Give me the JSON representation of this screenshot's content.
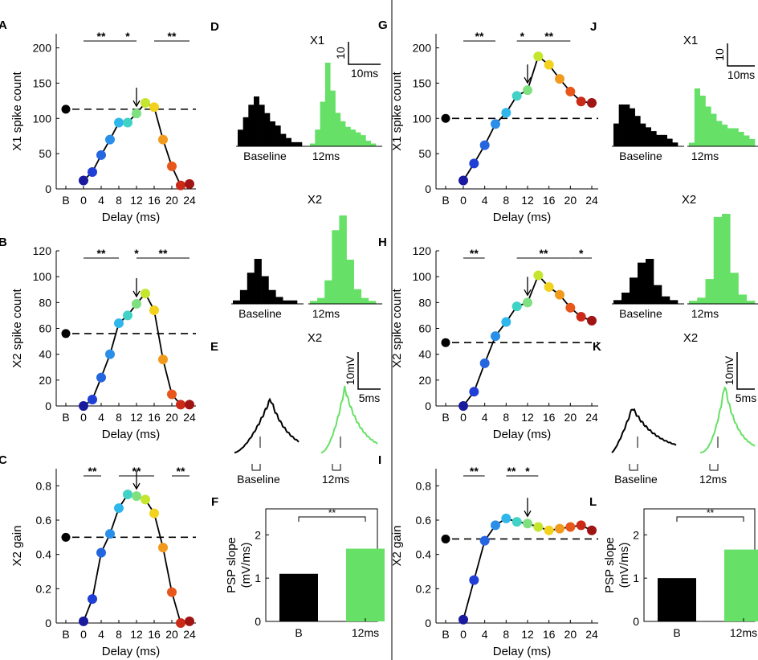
{
  "chart_data": [
    {
      "id": "A",
      "type": "line",
      "letter": "A",
      "ylabel": "X1 spike count",
      "xlabel": "Delay (ms)",
      "ylim": [
        0,
        220
      ],
      "yticks": [
        0,
        50,
        100,
        150,
        200
      ],
      "categories": [
        "B",
        "0",
        "4",
        "8",
        "12",
        "16",
        "20",
        "24"
      ],
      "baseline": 113,
      "x": [
        0,
        2,
        4,
        6,
        8,
        10,
        12,
        14,
        16,
        18,
        20,
        22,
        24
      ],
      "values": [
        12,
        24,
        48,
        70,
        94,
        94,
        107,
        122,
        116,
        70,
        32,
        5,
        7
      ],
      "arrow_at": 12,
      "sig": [
        {
          "label": "**",
          "from": 0,
          "to": 8
        },
        {
          "label": "*",
          "from": 8,
          "to": 12
        },
        {
          "label": "**",
          "from": 16,
          "to": 24
        }
      ]
    },
    {
      "id": "B",
      "type": "line",
      "letter": "B",
      "ylabel": "X2 spike count",
      "xlabel": "Delay (ms)",
      "ylim": [
        0,
        120
      ],
      "yticks": [
        0,
        20,
        40,
        60,
        80,
        100,
        120
      ],
      "categories": [
        "B",
        "0",
        "4",
        "8",
        "12",
        "16",
        "20",
        "24"
      ],
      "baseline": 56,
      "x": [
        0,
        2,
        4,
        6,
        8,
        10,
        12,
        14,
        16,
        18,
        20,
        22,
        24
      ],
      "values": [
        0,
        5,
        22,
        40,
        64,
        70,
        79,
        87,
        74,
        36,
        9,
        1,
        1
      ],
      "arrow_at": 12,
      "sig": [
        {
          "label": "**",
          "from": 0,
          "to": 8
        },
        {
          "label": "*",
          "from": 12,
          "to": 12
        },
        {
          "label": "**",
          "from": 12,
          "to": 24
        }
      ]
    },
    {
      "id": "C",
      "type": "line",
      "letter": "C",
      "ylabel": "X2 gain",
      "xlabel": "Delay (ms)",
      "ylim": [
        0,
        0.9
      ],
      "yticks": [
        0,
        0.2,
        0.4,
        0.6,
        0.8
      ],
      "categories": [
        "B",
        "0",
        "4",
        "8",
        "12",
        "16",
        "20",
        "24"
      ],
      "baseline": 0.5,
      "x": [
        0,
        2,
        4,
        6,
        8,
        10,
        12,
        14,
        16,
        18,
        20,
        22,
        24
      ],
      "values": [
        0.01,
        0.14,
        0.41,
        0.52,
        0.67,
        0.75,
        0.74,
        0.72,
        0.64,
        0.44,
        0.18,
        0.0,
        0.01
      ],
      "arrow_at": 12,
      "sig": [
        {
          "label": "**",
          "from": 0,
          "to": 4
        },
        {
          "label": "**",
          "from": 8,
          "to": 16
        },
        {
          "label": "**",
          "from": 20,
          "to": 24
        }
      ]
    },
    {
      "id": "G",
      "type": "line",
      "letter": "G",
      "ylabel": "X1 spike count",
      "xlabel": "Delay (ms)",
      "ylim": [
        0,
        220
      ],
      "yticks": [
        0,
        50,
        100,
        150,
        200
      ],
      "categories": [
        "B",
        "0",
        "4",
        "8",
        "12",
        "16",
        "20",
        "24"
      ],
      "baseline": 100,
      "x": [
        0,
        2,
        4,
        6,
        8,
        10,
        12,
        14,
        16,
        18,
        20,
        22,
        24
      ],
      "values": [
        12,
        36,
        62,
        92,
        108,
        132,
        140,
        188,
        176,
        156,
        138,
        124,
        122
      ],
      "arrow_at": 12,
      "sig": [
        {
          "label": "**",
          "from": 0,
          "to": 6
        },
        {
          "label": "*",
          "from": 10,
          "to": 12
        },
        {
          "label": "**",
          "from": 12,
          "to": 20
        }
      ]
    },
    {
      "id": "H",
      "type": "line",
      "letter": "H",
      "ylabel": "X2 spike count",
      "xlabel": "Delay (ms)",
      "ylim": [
        0,
        120
      ],
      "yticks": [
        0,
        20,
        40,
        60,
        80,
        100,
        120
      ],
      "categories": [
        "B",
        "0",
        "4",
        "8",
        "12",
        "16",
        "20",
        "24"
      ],
      "baseline": 49,
      "x": [
        0,
        2,
        4,
        6,
        8,
        10,
        12,
        14,
        16,
        18,
        20,
        22,
        24
      ],
      "values": [
        0,
        11,
        33,
        54,
        65,
        77,
        80,
        101,
        92,
        86,
        76,
        69,
        66
      ],
      "arrow_at": 12,
      "sig": [
        {
          "label": "**",
          "from": 0,
          "to": 4
        },
        {
          "label": "**",
          "from": 10,
          "to": 20
        },
        {
          "label": "*",
          "from": 20,
          "to": 24
        }
      ]
    },
    {
      "id": "I",
      "type": "line",
      "letter": "I",
      "ylabel": "X2 gain",
      "xlabel": "Delay (ms)",
      "ylim": [
        0,
        0.9
      ],
      "yticks": [
        0,
        0.2,
        0.4,
        0.6,
        0.8
      ],
      "categories": [
        "B",
        "0",
        "4",
        "8",
        "12",
        "16",
        "20",
        "24"
      ],
      "baseline": 0.49,
      "x": [
        0,
        2,
        4,
        6,
        8,
        10,
        12,
        14,
        16,
        18,
        20,
        22,
        24
      ],
      "values": [
        0.02,
        0.25,
        0.48,
        0.57,
        0.61,
        0.59,
        0.58,
        0.56,
        0.54,
        0.55,
        0.56,
        0.57,
        0.54
      ],
      "arrow_at": 12,
      "sig": [
        {
          "label": "**",
          "from": 0,
          "to": 4
        },
        {
          "label": "**",
          "from": 8,
          "to": 10
        },
        {
          "label": "*",
          "from": 10,
          "to": 14
        }
      ]
    },
    {
      "id": "D",
      "type": "bar",
      "letter": "D",
      "title": "X1",
      "scalebar": {
        "v_label": "10",
        "h_label": "10ms"
      },
      "histograms": [
        {
          "label": "Baseline",
          "color": "#000000",
          "values": [
            4,
            7,
            10,
            12,
            10,
            8,
            6,
            5,
            3,
            2,
            1,
            1
          ]
        },
        {
          "label": "12ms",
          "color": "#66e066",
          "values": [
            1,
            6,
            16,
            30,
            20,
            12,
            9,
            7,
            6,
            5,
            4,
            2,
            1
          ]
        }
      ]
    },
    {
      "id": "D2",
      "type": "bar",
      "title": "X2",
      "histograms": [
        {
          "label": "Baseline",
          "color": "#000000",
          "values": [
            1,
            4,
            9,
            13,
            8,
            4,
            2,
            1,
            1
          ]
        },
        {
          "label": "12ms",
          "color": "#66e066",
          "values": [
            1,
            2,
            8,
            25,
            30,
            15,
            5,
            2,
            1
          ]
        }
      ]
    },
    {
      "id": "J",
      "type": "bar",
      "letter": "J",
      "title": "X1",
      "scalebar": {
        "v_label": "10",
        "h_label": "10ms"
      },
      "histograms": [
        {
          "label": "Baseline",
          "color": "#000000",
          "values": [
            6,
            11,
            11,
            10,
            8,
            6,
            5,
            4,
            3,
            3,
            2,
            1
          ]
        },
        {
          "label": "12ms",
          "color": "#66e066",
          "values": [
            1,
            16,
            14,
            11,
            9,
            7,
            6,
            5,
            5,
            4,
            3,
            2
          ]
        }
      ]
    },
    {
      "id": "J2",
      "type": "bar",
      "title": "X2",
      "histograms": [
        {
          "label": "Baseline",
          "color": "#000000",
          "values": [
            1,
            3,
            7,
            11,
            12,
            5,
            2,
            1
          ]
        },
        {
          "label": "12ms",
          "color": "#66e066",
          "values": [
            1,
            2,
            8,
            28,
            29,
            10,
            3,
            1
          ]
        }
      ]
    },
    {
      "id": "E",
      "type": "line",
      "letter": "E",
      "title": "X2",
      "scalebar": {
        "v_label": "10mV",
        "h_label": "5ms"
      },
      "traces": [
        {
          "label": "Baseline",
          "color": "#000000"
        },
        {
          "label": "12ms",
          "color": "#66e066"
        }
      ]
    },
    {
      "id": "K",
      "type": "line",
      "letter": "K",
      "title": "X2",
      "scalebar": {
        "v_label": "10mV",
        "h_label": "5ms"
      },
      "traces": [
        {
          "label": "Baseline",
          "color": "#000000"
        },
        {
          "label": "12ms",
          "color": "#66e066"
        }
      ]
    },
    {
      "id": "F",
      "type": "bar",
      "letter": "F",
      "ylabel": "PSP slope",
      "ylabel2": "(mV/ms)",
      "ylim": [
        0,
        2.6
      ],
      "yticks": [
        0,
        1,
        2
      ],
      "categories": [
        "B",
        "12ms"
      ],
      "values": [
        1.1,
        1.68
      ],
      "colors": [
        "#000000",
        "#66e066"
      ],
      "sig": "**"
    },
    {
      "id": "L",
      "type": "bar",
      "letter": "L",
      "ylabel": "PSP slope",
      "ylabel2": "(mV/ms)",
      "ylim": [
        0,
        2.6
      ],
      "yticks": [
        0,
        1,
        2
      ],
      "categories": [
        "B",
        "12ms"
      ],
      "values": [
        1.0,
        1.66
      ],
      "colors": [
        "#000000",
        "#66e066"
      ],
      "sig": "**"
    }
  ],
  "colors": {
    "baseline": "#000000",
    "highlight": "#66e066",
    "delay_colormap": [
      "#1a1a9e",
      "#1f3fd6",
      "#2566e0",
      "#2a8fe8",
      "#2fb7ec",
      "#40d2c4",
      "#7fe080",
      "#c5e62e",
      "#f2d21c",
      "#f29a1c",
      "#e8561a",
      "#cc2a18",
      "#a01414"
    ]
  }
}
